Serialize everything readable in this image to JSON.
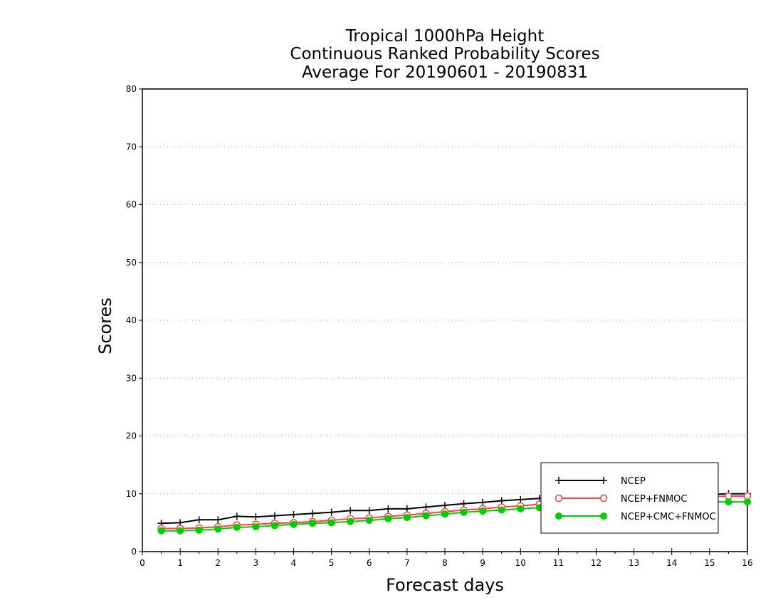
{
  "chart_data": {
    "type": "line",
    "title_lines": [
      "Tropical 1000hPa Height",
      "Continuous Ranked Probability Scores",
      "Average For 20190601 - 20190831"
    ],
    "xlabel": "Forecast days",
    "ylabel": "Scores",
    "xlim": [
      0,
      16
    ],
    "ylim": [
      0,
      80
    ],
    "xticks": [
      0,
      1,
      2,
      3,
      4,
      5,
      6,
      7,
      8,
      9,
      10,
      11,
      12,
      13,
      14,
      15,
      16
    ],
    "yticks": [
      0,
      10,
      20,
      30,
      40,
      50,
      60,
      70,
      80
    ],
    "grid": "horizontal dotted",
    "legend_position": "lower-right",
    "x": [
      0.5,
      1,
      1.5,
      2,
      2.5,
      3,
      3.5,
      4,
      4.5,
      5,
      5.5,
      6,
      6.5,
      7,
      7.5,
      8,
      8.5,
      9,
      9.5,
      10,
      10.5,
      11,
      11.5,
      12,
      12.5,
      13,
      13.5,
      14,
      14.5,
      15,
      15.5,
      16
    ],
    "series": [
      {
        "name": "NCEP",
        "color": "#000000",
        "marker": "plus",
        "values": [
          4.9,
          5.0,
          5.5,
          5.5,
          6.1,
          6.0,
          6.2,
          6.4,
          6.6,
          6.8,
          7.1,
          7.1,
          7.4,
          7.4,
          7.7,
          8.0,
          8.3,
          8.5,
          8.8,
          9.0,
          9.2,
          9.3,
          9.4,
          9.5,
          9.6,
          9.6,
          9.7,
          9.8,
          9.8,
          9.9,
          10.0,
          10.0
        ]
      },
      {
        "name": "NCEP+FNMOC",
        "color": "#ff4040",
        "marker": "open-circle",
        "values": [
          4.0,
          4.0,
          4.1,
          4.3,
          4.6,
          4.7,
          4.9,
          5.0,
          5.2,
          5.4,
          5.7,
          5.8,
          6.1,
          6.3,
          6.6,
          6.9,
          7.2,
          7.4,
          7.7,
          7.9,
          8.2,
          8.4,
          8.6,
          8.8,
          8.9,
          9.1,
          9.2,
          9.3,
          9.4,
          9.5,
          9.6,
          9.6
        ]
      },
      {
        "name": "NCEP+CMC+FNMOC",
        "color": "#00cc00",
        "marker": "filled-circle",
        "values": [
          3.6,
          3.6,
          3.7,
          3.9,
          4.2,
          4.3,
          4.5,
          4.7,
          4.9,
          5.0,
          5.2,
          5.4,
          5.7,
          5.9,
          6.2,
          6.5,
          6.8,
          7.0,
          7.2,
          7.4,
          7.6,
          7.8,
          8.0,
          8.1,
          8.2,
          8.3,
          8.4,
          8.5,
          8.5,
          8.6,
          8.6,
          8.6
        ]
      }
    ]
  }
}
